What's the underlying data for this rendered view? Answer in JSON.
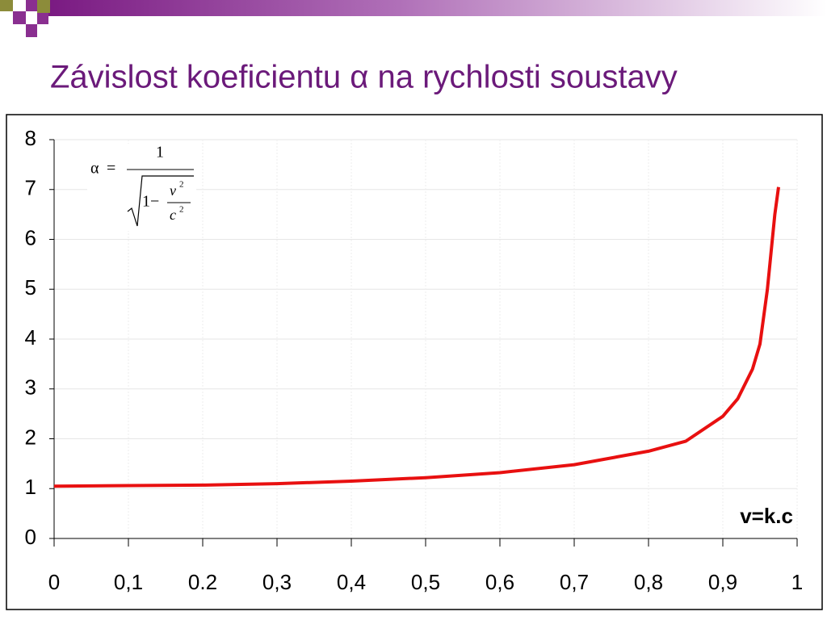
{
  "title": "Závislost koeficientu α na rychlosti soustavy",
  "chart_data": {
    "type": "line",
    "x": [
      0,
      0.1,
      0.2,
      0.3,
      0.4,
      0.5,
      0.6,
      0.7,
      0.8,
      0.85,
      0.9,
      0.92,
      0.94,
      0.95,
      0.96,
      0.97,
      0.975
    ],
    "values": [
      1.05,
      1.06,
      1.07,
      1.1,
      1.15,
      1.22,
      1.32,
      1.48,
      1.75,
      1.95,
      2.45,
      2.8,
      3.4,
      3.9,
      5.0,
      6.5,
      7.05
    ],
    "color": "#e81010",
    "xlim": [
      0,
      1
    ],
    "xticks": [
      0,
      {
        "value": 0.1,
        "label": "0,1"
      },
      0.2,
      {
        "value": 0.3,
        "label": "0,3"
      },
      {
        "value": 0.4,
        "label": "0,4"
      },
      {
        "value": 0.5,
        "label": "0,5"
      },
      {
        "value": 0.6,
        "label": "0,6"
      },
      {
        "value": 0.7,
        "label": "0,7"
      },
      {
        "value": 0.8,
        "label": "0,8"
      },
      {
        "value": 0.9,
        "label": "0,9"
      },
      1
    ],
    "ylim": [
      0,
      8
    ],
    "yticks": [
      0,
      1,
      2,
      3,
      4,
      5,
      6,
      7,
      8
    ],
    "grid": true,
    "annotation": "v=k.c",
    "formula": {
      "lhs": "α",
      "eq": "=",
      "numerator": "1",
      "one_minus": "1−",
      "v": "v",
      "v_exp": "2",
      "c": "c",
      "c_exp": "2"
    }
  }
}
